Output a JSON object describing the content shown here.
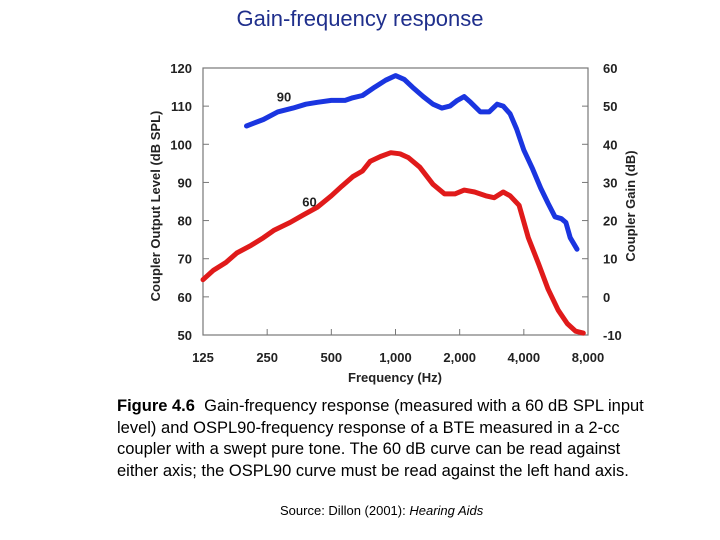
{
  "slide": {
    "title": "Gain-frequency response",
    "caption_label": "Figure 4.6",
    "caption_text": "Gain-frequency response (measured with a 60 dB SPL input level) and OSPL90-frequency response of a BTE measured in a 2-cc coupler with a swept pure tone.  The 60 dB curve can be read against either axis; the OSPL90 curve must be read against the left hand axis.",
    "source_prefix": "Source:  Dillon (2001): ",
    "source_title": "Hearing Aids"
  },
  "chart_data": {
    "type": "line",
    "xlabel": "Frequency (Hz)",
    "ylabel": "Coupler Output Level (dB SPL)",
    "y2label": "Coupler Gain (dB)",
    "xscale": "log2",
    "xlim": [
      125,
      8000
    ],
    "ylim": [
      50,
      120
    ],
    "y2lim": [
      -10,
      60
    ],
    "x_ticks": [
      125,
      250,
      500,
      1000,
      2000,
      4000,
      8000
    ],
    "x_tick_labels": [
      "125",
      "250",
      "500",
      "1,000",
      "2,000",
      "4,000",
      "8,000"
    ],
    "y_ticks": [
      50,
      60,
      70,
      80,
      90,
      100,
      110,
      120
    ],
    "y_tick_labels": [
      "50",
      "60",
      "70",
      "80",
      "90",
      "100",
      "110",
      "120"
    ],
    "y2_ticks": [
      -10,
      0,
      10,
      20,
      30,
      40,
      50,
      60
    ],
    "y2_tick_labels": [
      "-10",
      "0",
      "10",
      "20",
      "30",
      "40",
      "50",
      "60"
    ],
    "grid": false,
    "series": [
      {
        "name": "90",
        "color": "#1a35e0",
        "points": [
          [
            200,
            104.8
          ],
          [
            240,
            106.5
          ],
          [
            280,
            108.5
          ],
          [
            330,
            109.5
          ],
          [
            380,
            110.5
          ],
          [
            430,
            111
          ],
          [
            500,
            111.5
          ],
          [
            580,
            111.5
          ],
          [
            630,
            112.2
          ],
          [
            700,
            112.8
          ],
          [
            800,
            115
          ],
          [
            900,
            116.8
          ],
          [
            1000,
            118
          ],
          [
            1100,
            117
          ],
          [
            1200,
            115
          ],
          [
            1350,
            112.5
          ],
          [
            1500,
            110.5
          ],
          [
            1650,
            109.5
          ],
          [
            1800,
            110
          ],
          [
            1950,
            111.5
          ],
          [
            2100,
            112.5
          ],
          [
            2250,
            111
          ],
          [
            2500,
            108.5
          ],
          [
            2750,
            108.5
          ],
          [
            3000,
            110.5
          ],
          [
            3200,
            110
          ],
          [
            3450,
            108
          ],
          [
            3700,
            104
          ],
          [
            4000,
            98.5
          ],
          [
            4400,
            93.5
          ],
          [
            4800,
            88.5
          ],
          [
            5200,
            84.5
          ],
          [
            5600,
            81
          ],
          [
            6000,
            80.5
          ],
          [
            6300,
            79.5
          ],
          [
            6600,
            75.5
          ],
          [
            7100,
            72.5
          ]
        ]
      },
      {
        "name": "60",
        "color": "#e01a1a",
        "points": [
          [
            125,
            64.5
          ],
          [
            140,
            67
          ],
          [
            160,
            69
          ],
          [
            180,
            71.5
          ],
          [
            210,
            73.5
          ],
          [
            240,
            75.5
          ],
          [
            270,
            77.5
          ],
          [
            320,
            79.5
          ],
          [
            370,
            81.5
          ],
          [
            430,
            83.5
          ],
          [
            500,
            86.5
          ],
          [
            560,
            89
          ],
          [
            630,
            91.5
          ],
          [
            700,
            93
          ],
          [
            760,
            95.5
          ],
          [
            850,
            96.8
          ],
          [
            950,
            97.8
          ],
          [
            1050,
            97.5
          ],
          [
            1150,
            96.5
          ],
          [
            1300,
            94
          ],
          [
            1500,
            89.5
          ],
          [
            1700,
            87
          ],
          [
            1900,
            87
          ],
          [
            2100,
            88
          ],
          [
            2350,
            87.5
          ],
          [
            2650,
            86.5
          ],
          [
            2900,
            86
          ],
          [
            3200,
            87.5
          ],
          [
            3450,
            86.5
          ],
          [
            3800,
            84
          ],
          [
            4200,
            75.5
          ],
          [
            4700,
            68.5
          ],
          [
            5200,
            62
          ],
          [
            5800,
            56.5
          ],
          [
            6400,
            53
          ],
          [
            7000,
            51
          ],
          [
            7600,
            50.5
          ]
        ]
      }
    ],
    "annotations": [
      {
        "text": "90",
        "x": 300,
        "y": 112.5
      },
      {
        "text": "60",
        "x": 395,
        "y": 85
      }
    ]
  }
}
